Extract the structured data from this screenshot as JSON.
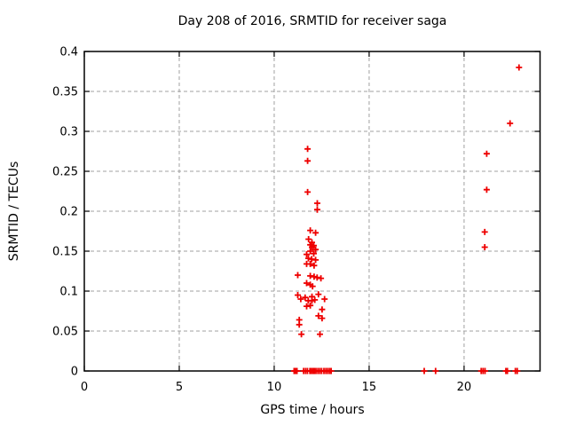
{
  "figure": {
    "title": "Day 208 of 2016, SRMTID for receiver saga",
    "background": "#ffffff",
    "text_color": "#000000",
    "border_color": "#000000",
    "grid_color": "#a0a0a0"
  },
  "chart_data": {
    "type": "scatter",
    "title": "Day 208 of 2016, SRMTID for receiver saga",
    "xlabel": "GPS time / hours",
    "ylabel": "SRMTID / TECUs",
    "xlim": [
      0,
      24
    ],
    "ylim": [
      0,
      0.4
    ],
    "xticks": [
      0,
      5,
      10,
      15,
      20
    ],
    "yticks": [
      0,
      0.05,
      0.1,
      0.15,
      0.2,
      0.25,
      0.3,
      0.35,
      0.4
    ],
    "xtick_labels": [
      "0",
      "5",
      "10",
      "15",
      "20"
    ],
    "ytick_labels": [
      "0",
      "0.05",
      "0.1",
      "0.15",
      "0.2",
      "0.25",
      "0.3",
      "0.35",
      "0.4"
    ],
    "grid": true,
    "grid_style": "dashed",
    "legend": "none",
    "marker": "plus",
    "marker_color": "#ee0000",
    "series_name": "SRMTID",
    "points": [
      [
        11.76,
        0.278
      ],
      [
        11.76,
        0.263
      ],
      [
        11.76,
        0.224
      ],
      [
        12.27,
        0.21
      ],
      [
        12.27,
        0.202
      ],
      [
        11.9,
        0.176
      ],
      [
        12.18,
        0.173
      ],
      [
        11.81,
        0.165
      ],
      [
        11.99,
        0.161
      ],
      [
        11.9,
        0.158
      ],
      [
        12.08,
        0.157
      ],
      [
        11.99,
        0.155
      ],
      [
        12.18,
        0.152
      ],
      [
        11.9,
        0.15
      ],
      [
        12.08,
        0.147
      ],
      [
        11.71,
        0.146
      ],
      [
        11.8,
        0.141
      ],
      [
        11.97,
        0.14
      ],
      [
        12.18,
        0.139
      ],
      [
        11.71,
        0.134
      ],
      [
        11.9,
        0.134
      ],
      [
        12.1,
        0.132
      ],
      [
        11.24,
        0.12
      ],
      [
        11.9,
        0.119
      ],
      [
        12.1,
        0.118
      ],
      [
        12.26,
        0.117
      ],
      [
        12.46,
        0.116
      ],
      [
        11.71,
        0.11
      ],
      [
        11.9,
        0.108
      ],
      [
        12.02,
        0.106
      ],
      [
        12.33,
        0.096
      ],
      [
        11.24,
        0.095
      ],
      [
        11.99,
        0.093
      ],
      [
        11.63,
        0.092
      ],
      [
        11.4,
        0.09
      ],
      [
        12.65,
        0.09
      ],
      [
        12.14,
        0.089
      ],
      [
        11.79,
        0.088
      ],
      [
        11.99,
        0.088
      ],
      [
        11.9,
        0.082
      ],
      [
        11.71,
        0.081
      ],
      [
        12.52,
        0.077
      ],
      [
        12.33,
        0.069
      ],
      [
        12.52,
        0.066
      ],
      [
        11.32,
        0.064
      ],
      [
        11.32,
        0.058
      ],
      [
        11.43,
        0.046
      ],
      [
        12.41,
        0.046
      ],
      [
        21.09,
        0.174
      ],
      [
        21.09,
        0.155
      ],
      [
        21.19,
        0.272
      ],
      [
        21.19,
        0.227
      ],
      [
        22.42,
        0.31
      ],
      [
        22.89,
        0.38
      ],
      [
        11.05,
        0
      ],
      [
        11.1,
        0
      ],
      [
        11.15,
        0
      ],
      [
        11.2,
        0
      ],
      [
        11.55,
        0
      ],
      [
        11.65,
        0
      ],
      [
        11.75,
        0
      ],
      [
        11.88,
        0
      ],
      [
        11.96,
        0
      ],
      [
        12.04,
        0
      ],
      [
        12.12,
        0
      ],
      [
        12.2,
        0
      ],
      [
        12.3,
        0
      ],
      [
        12.4,
        0
      ],
      [
        12.5,
        0
      ],
      [
        12.62,
        0
      ],
      [
        12.72,
        0
      ],
      [
        12.82,
        0
      ],
      [
        12.92,
        0
      ],
      [
        13.0,
        0
      ],
      [
        17.9,
        0
      ],
      [
        18.5,
        0
      ],
      [
        20.9,
        0
      ],
      [
        21.0,
        0
      ],
      [
        21.1,
        0
      ],
      [
        22.2,
        0
      ],
      [
        22.28,
        0
      ],
      [
        22.7,
        0
      ],
      [
        22.8,
        0
      ]
    ]
  }
}
